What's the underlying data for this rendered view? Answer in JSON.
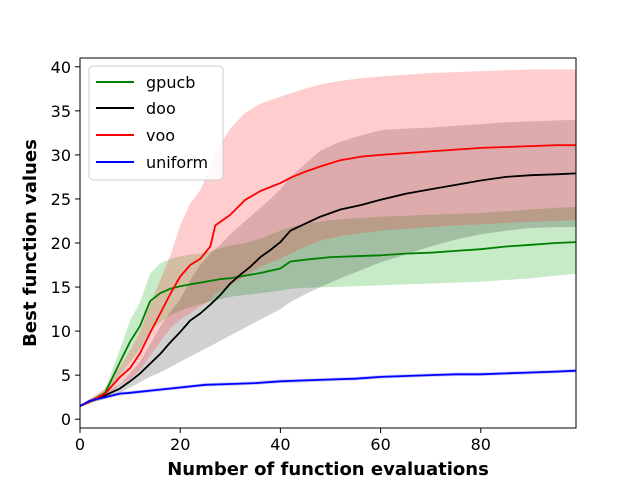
{
  "chart_data": {
    "type": "line",
    "title": "",
    "xlabel": "Number of function evaluations",
    "ylabel": "Best function values",
    "xlim": [
      0,
      99
    ],
    "ylim": [
      -1,
      41
    ],
    "xticks": [
      0,
      20,
      40,
      60,
      80
    ],
    "yticks": [
      0,
      5,
      10,
      15,
      20,
      25,
      30,
      35,
      40
    ],
    "grid": false,
    "legend_position": "top-left",
    "series": [
      {
        "name": "gpucb",
        "color": "#008000",
        "band_color": "rgba(0,160,0,0.22)",
        "x": [
          0,
          2,
          5,
          8,
          10,
          12,
          14,
          16,
          18,
          20,
          22,
          25,
          28,
          30,
          33,
          36,
          40,
          42,
          45,
          50,
          55,
          60,
          65,
          70,
          75,
          80,
          85,
          90,
          95,
          99
        ],
        "mean": [
          1.5,
          2.0,
          3.0,
          6.5,
          8.8,
          10.6,
          13.4,
          14.3,
          14.8,
          15.1,
          15.3,
          15.6,
          15.9,
          16.0,
          16.3,
          16.6,
          17.1,
          17.9,
          18.1,
          18.4,
          18.5,
          18.6,
          18.8,
          18.9,
          19.1,
          19.3,
          19.6,
          19.8,
          20.0,
          20.1
        ],
        "lower": [
          1.4,
          1.8,
          2.6,
          5.0,
          6.5,
          8.0,
          10.0,
          11.0,
          11.8,
          12.3,
          12.7,
          13.2,
          13.6,
          13.9,
          14.1,
          14.3,
          14.6,
          14.8,
          14.9,
          15.0,
          15.1,
          15.2,
          15.3,
          15.4,
          15.5,
          15.6,
          15.8,
          16.0,
          16.3,
          16.5
        ],
        "upper": [
          1.6,
          2.2,
          3.4,
          8.0,
          11.2,
          13.3,
          16.5,
          17.7,
          18.2,
          18.5,
          18.7,
          18.9,
          19.4,
          19.7,
          20.0,
          20.5,
          21.4,
          21.8,
          22.2,
          22.6,
          22.8,
          23.0,
          23.1,
          23.2,
          23.3,
          23.4,
          23.6,
          23.8,
          24.0,
          24.1
        ]
      },
      {
        "name": "doo",
        "color": "#000000",
        "band_color": "rgba(0,0,0,0.18)",
        "x": [
          0,
          2,
          5,
          8,
          10,
          12,
          14,
          16,
          18,
          20,
          22,
          24,
          26,
          28,
          30,
          32,
          34,
          36,
          38,
          40,
          42,
          45,
          48,
          52,
          56,
          60,
          65,
          70,
          75,
          80,
          85,
          90,
          95,
          99
        ],
        "mean": [
          1.5,
          2.0,
          2.7,
          3.5,
          4.3,
          5.2,
          6.3,
          7.4,
          8.7,
          9.9,
          11.2,
          12.0,
          13.0,
          14.1,
          15.4,
          16.4,
          17.3,
          18.4,
          19.2,
          20.1,
          21.4,
          22.2,
          23.0,
          23.8,
          24.3,
          24.9,
          25.6,
          26.1,
          26.6,
          27.1,
          27.5,
          27.7,
          27.8,
          27.9
        ],
        "lower": [
          1.4,
          1.8,
          2.3,
          3.0,
          3.6,
          4.2,
          4.8,
          5.3,
          5.9,
          6.5,
          7.1,
          7.7,
          8.3,
          8.9,
          9.5,
          10.1,
          10.7,
          11.3,
          11.9,
          12.5,
          13.3,
          14.2,
          15.0,
          16.0,
          16.9,
          17.8,
          18.7,
          19.6,
          20.4,
          21.0,
          21.4,
          21.7,
          21.8,
          21.8
        ],
        "upper": [
          1.6,
          2.2,
          3.0,
          4.0,
          5.2,
          6.5,
          8.5,
          10.5,
          12.2,
          13.6,
          15.8,
          17.5,
          18.8,
          19.8,
          21.0,
          22.0,
          23.0,
          24.0,
          25.0,
          26.1,
          27.5,
          29.0,
          30.5,
          31.5,
          32.2,
          32.8,
          33.0,
          33.1,
          33.3,
          33.5,
          33.7,
          33.8,
          33.9,
          34.0
        ]
      },
      {
        "name": "voo",
        "color": "#ff0000",
        "band_color": "rgba(255,60,60,0.26)",
        "x": [
          0,
          2,
          5,
          8,
          10,
          12,
          14,
          16,
          18,
          20,
          22,
          24,
          26,
          27,
          30,
          33,
          36,
          40,
          42,
          45,
          48,
          52,
          56,
          60,
          65,
          70,
          75,
          80,
          85,
          90,
          95,
          99
        ],
        "mean": [
          1.5,
          2.0,
          2.9,
          4.8,
          5.8,
          7.5,
          9.8,
          12.0,
          14.2,
          16.2,
          17.5,
          18.2,
          19.6,
          22.0,
          23.2,
          24.9,
          25.9,
          26.8,
          27.4,
          28.1,
          28.7,
          29.4,
          29.8,
          30.0,
          30.2,
          30.4,
          30.6,
          30.8,
          30.9,
          31.0,
          31.1,
          31.1
        ],
        "lower": [
          1.4,
          1.8,
          2.5,
          3.9,
          4.5,
          5.6,
          7.2,
          8.8,
          10.3,
          11.3,
          12.0,
          12.8,
          13.5,
          14.2,
          15.2,
          16.3,
          17.3,
          18.2,
          18.8,
          19.6,
          20.3,
          20.8,
          21.1,
          21.4,
          21.6,
          21.8,
          22.0,
          22.1,
          22.3,
          22.4,
          22.5,
          22.6
        ],
        "upper": [
          1.6,
          2.3,
          3.5,
          6.0,
          7.8,
          10.0,
          13.0,
          15.8,
          18.5,
          22.0,
          24.5,
          26.0,
          28.5,
          30.2,
          33.0,
          34.8,
          35.8,
          36.6,
          37.0,
          37.5,
          38.0,
          38.4,
          38.7,
          38.9,
          39.1,
          39.3,
          39.4,
          39.5,
          39.6,
          39.7,
          39.7,
          39.7
        ]
      },
      {
        "name": "uniform",
        "color": "#0000ff",
        "band_color": "rgba(80,80,255,0.30)",
        "x": [
          0,
          2,
          5,
          8,
          10,
          15,
          20,
          25,
          30,
          35,
          40,
          45,
          50,
          55,
          60,
          65,
          70,
          75,
          80,
          85,
          90,
          95,
          99
        ],
        "mean": [
          1.5,
          2.1,
          2.5,
          2.9,
          3.0,
          3.3,
          3.6,
          3.9,
          4.0,
          4.1,
          4.3,
          4.4,
          4.5,
          4.6,
          4.8,
          4.9,
          5.0,
          5.1,
          5.1,
          5.2,
          5.3,
          5.4,
          5.5
        ],
        "lower": [
          1.4,
          1.9,
          2.3,
          2.7,
          2.8,
          3.1,
          3.4,
          3.7,
          3.8,
          3.9,
          4.1,
          4.2,
          4.3,
          4.4,
          4.6,
          4.7,
          4.8,
          4.9,
          4.9,
          5.0,
          5.1,
          5.2,
          5.3
        ],
        "upper": [
          1.6,
          2.3,
          2.7,
          3.1,
          3.2,
          3.5,
          3.8,
          4.1,
          4.2,
          4.3,
          4.5,
          4.6,
          4.7,
          4.8,
          5.0,
          5.1,
          5.2,
          5.3,
          5.3,
          5.4,
          5.5,
          5.6,
          5.7
        ]
      }
    ]
  }
}
